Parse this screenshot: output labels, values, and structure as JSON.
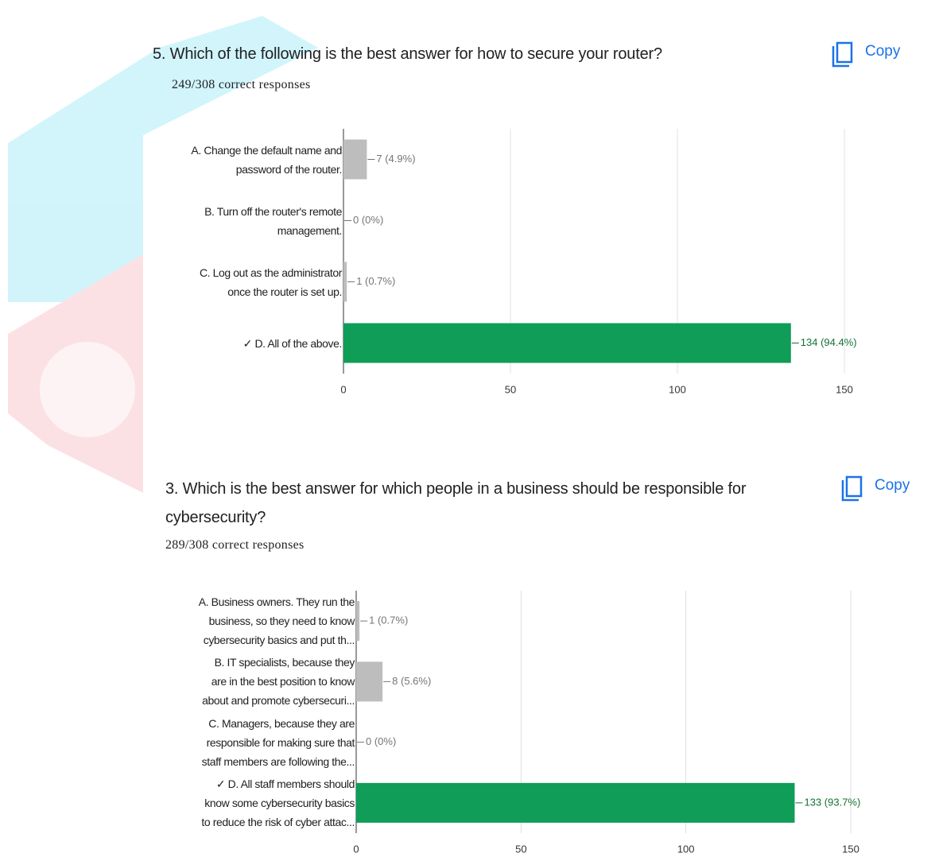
{
  "chart_data": [
    {
      "type": "bar",
      "orientation": "horizontal",
      "title": "5. Which of the following is the best answer for how to secure your router?",
      "subtitle": "249/308 correct responses",
      "action": "Copy",
      "categories": [
        "A. Change the default name and\npassword of the router.",
        "B. Turn off the router's remote\nmanagement.",
        "C. Log out as the administrator\nonce the router is set up.",
        "✓ D. All of the above."
      ],
      "values": [
        7,
        0,
        1,
        134
      ],
      "value_labels": [
        "7 (4.9%)",
        "0 (0%)",
        "1 (0.7%)",
        "134 (94.4%)"
      ],
      "colors": [
        "#bdbdbd",
        "#bdbdbd",
        "#bdbdbd",
        "#0f9d58"
      ],
      "xlim": [
        0,
        150
      ],
      "xticks": [
        0,
        50,
        100,
        150
      ],
      "grid": true
    },
    {
      "type": "bar",
      "orientation": "horizontal",
      "title": "3. Which is the best answer for which people in a business should be responsible for cybersecurity?",
      "subtitle": "289/308 correct responses",
      "action": "Copy",
      "categories": [
        "A. Business owners. They run the\nbusiness, so they need to know\ncybersecurity basics and put th...",
        "B. IT specialists, because they\nare in the best position to know\nabout and promote cybersecuri...",
        "C. Managers, because they are\nresponsible for making sure that\nstaff members are following the...",
        "✓ D. All staff members should\nknow some cybersecurity basics\nto reduce the risk of cyber attac..."
      ],
      "values": [
        1,
        8,
        0,
        133
      ],
      "value_labels": [
        "1 (0.7%)",
        "8 (5.6%)",
        "0 (0%)",
        "133 (93.7%)"
      ],
      "colors": [
        "#bdbdbd",
        "#bdbdbd",
        "#bdbdbd",
        "#0f9d58"
      ],
      "xlim": [
        0,
        150
      ],
      "xticks": [
        0,
        50,
        100,
        150
      ],
      "grid": true
    }
  ]
}
